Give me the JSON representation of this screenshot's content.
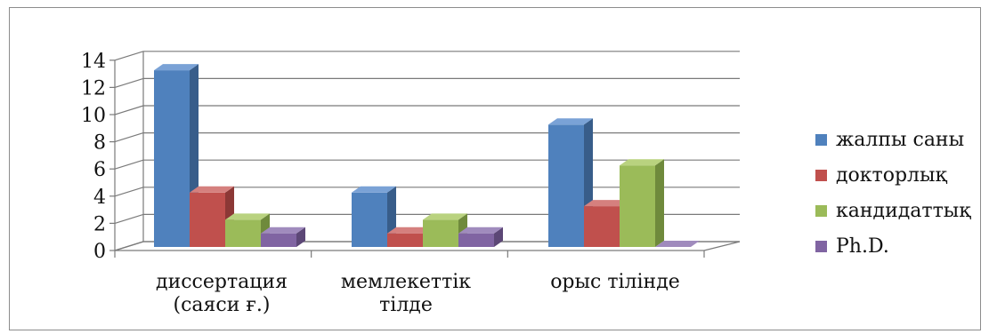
{
  "chart_data": {
    "type": "bar",
    "categories": [
      [
        "диссертация",
        "(саяси ғ.)"
      ],
      [
        "мемлекеттік",
        "тілде"
      ],
      [
        "орыс тілінде"
      ]
    ],
    "series": [
      {
        "name": "жалпы саны",
        "values": [
          13,
          4,
          9
        ],
        "color": "#4f81bd",
        "side": "#385d8a",
        "top": "#7aa2d6"
      },
      {
        "name": "докторлық",
        "values": [
          4,
          1,
          3
        ],
        "color": "#c0504d",
        "side": "#8c3836",
        "top": "#d5807e"
      },
      {
        "name": "кандидаттық",
        "values": [
          2,
          2,
          6
        ],
        "color": "#9bbb59",
        "side": "#6f8a3c",
        "top": "#b9d27f"
      },
      {
        "name": "Ph.D.",
        "values": [
          1,
          1,
          0
        ],
        "color": "#8064a2",
        "side": "#5c4776",
        "top": "#a08bbd"
      }
    ],
    "yticks": [
      "0",
      "2",
      "4",
      "6",
      "8",
      "10",
      "12",
      "14"
    ],
    "ylim": [
      0,
      14
    ],
    "grid": true,
    "legend_position": "right",
    "projection": "3d"
  }
}
